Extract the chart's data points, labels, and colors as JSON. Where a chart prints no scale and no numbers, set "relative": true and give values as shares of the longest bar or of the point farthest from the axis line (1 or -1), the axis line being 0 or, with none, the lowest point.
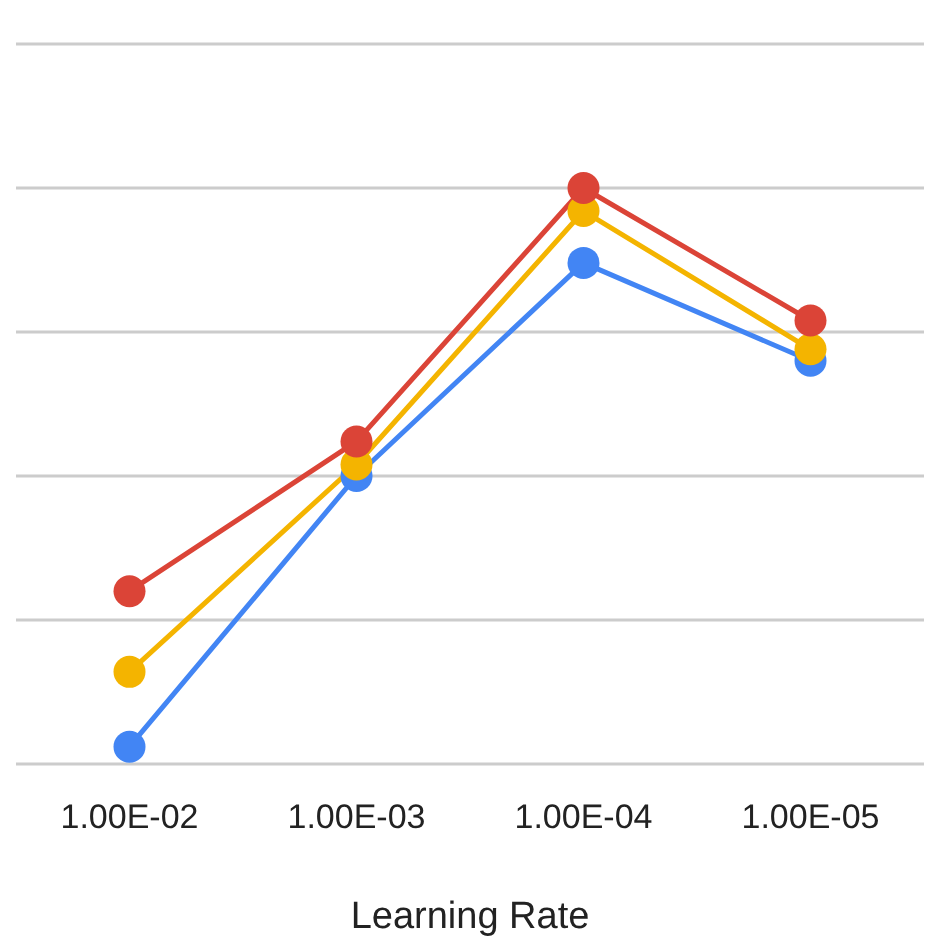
{
  "chart_data": {
    "type": "line",
    "xlabel": "Learning Rate",
    "categories": [
      "1.00E-02",
      "1.00E-03",
      "1.00E-04",
      "1.00E-05"
    ],
    "relative": true,
    "grid": "y",
    "marker": "circle",
    "line_style": "solid",
    "series": [
      {
        "color": "#4285f4",
        "values": [
          0.03,
          0.5,
          0.87,
          0.7
        ]
      },
      {
        "color": "#f4b400",
        "values": [
          0.16,
          0.52,
          0.96,
          0.72
        ]
      },
      {
        "color": "#db4437",
        "values": [
          0.3,
          0.56,
          1,
          0.77
        ]
      }
    ]
  }
}
